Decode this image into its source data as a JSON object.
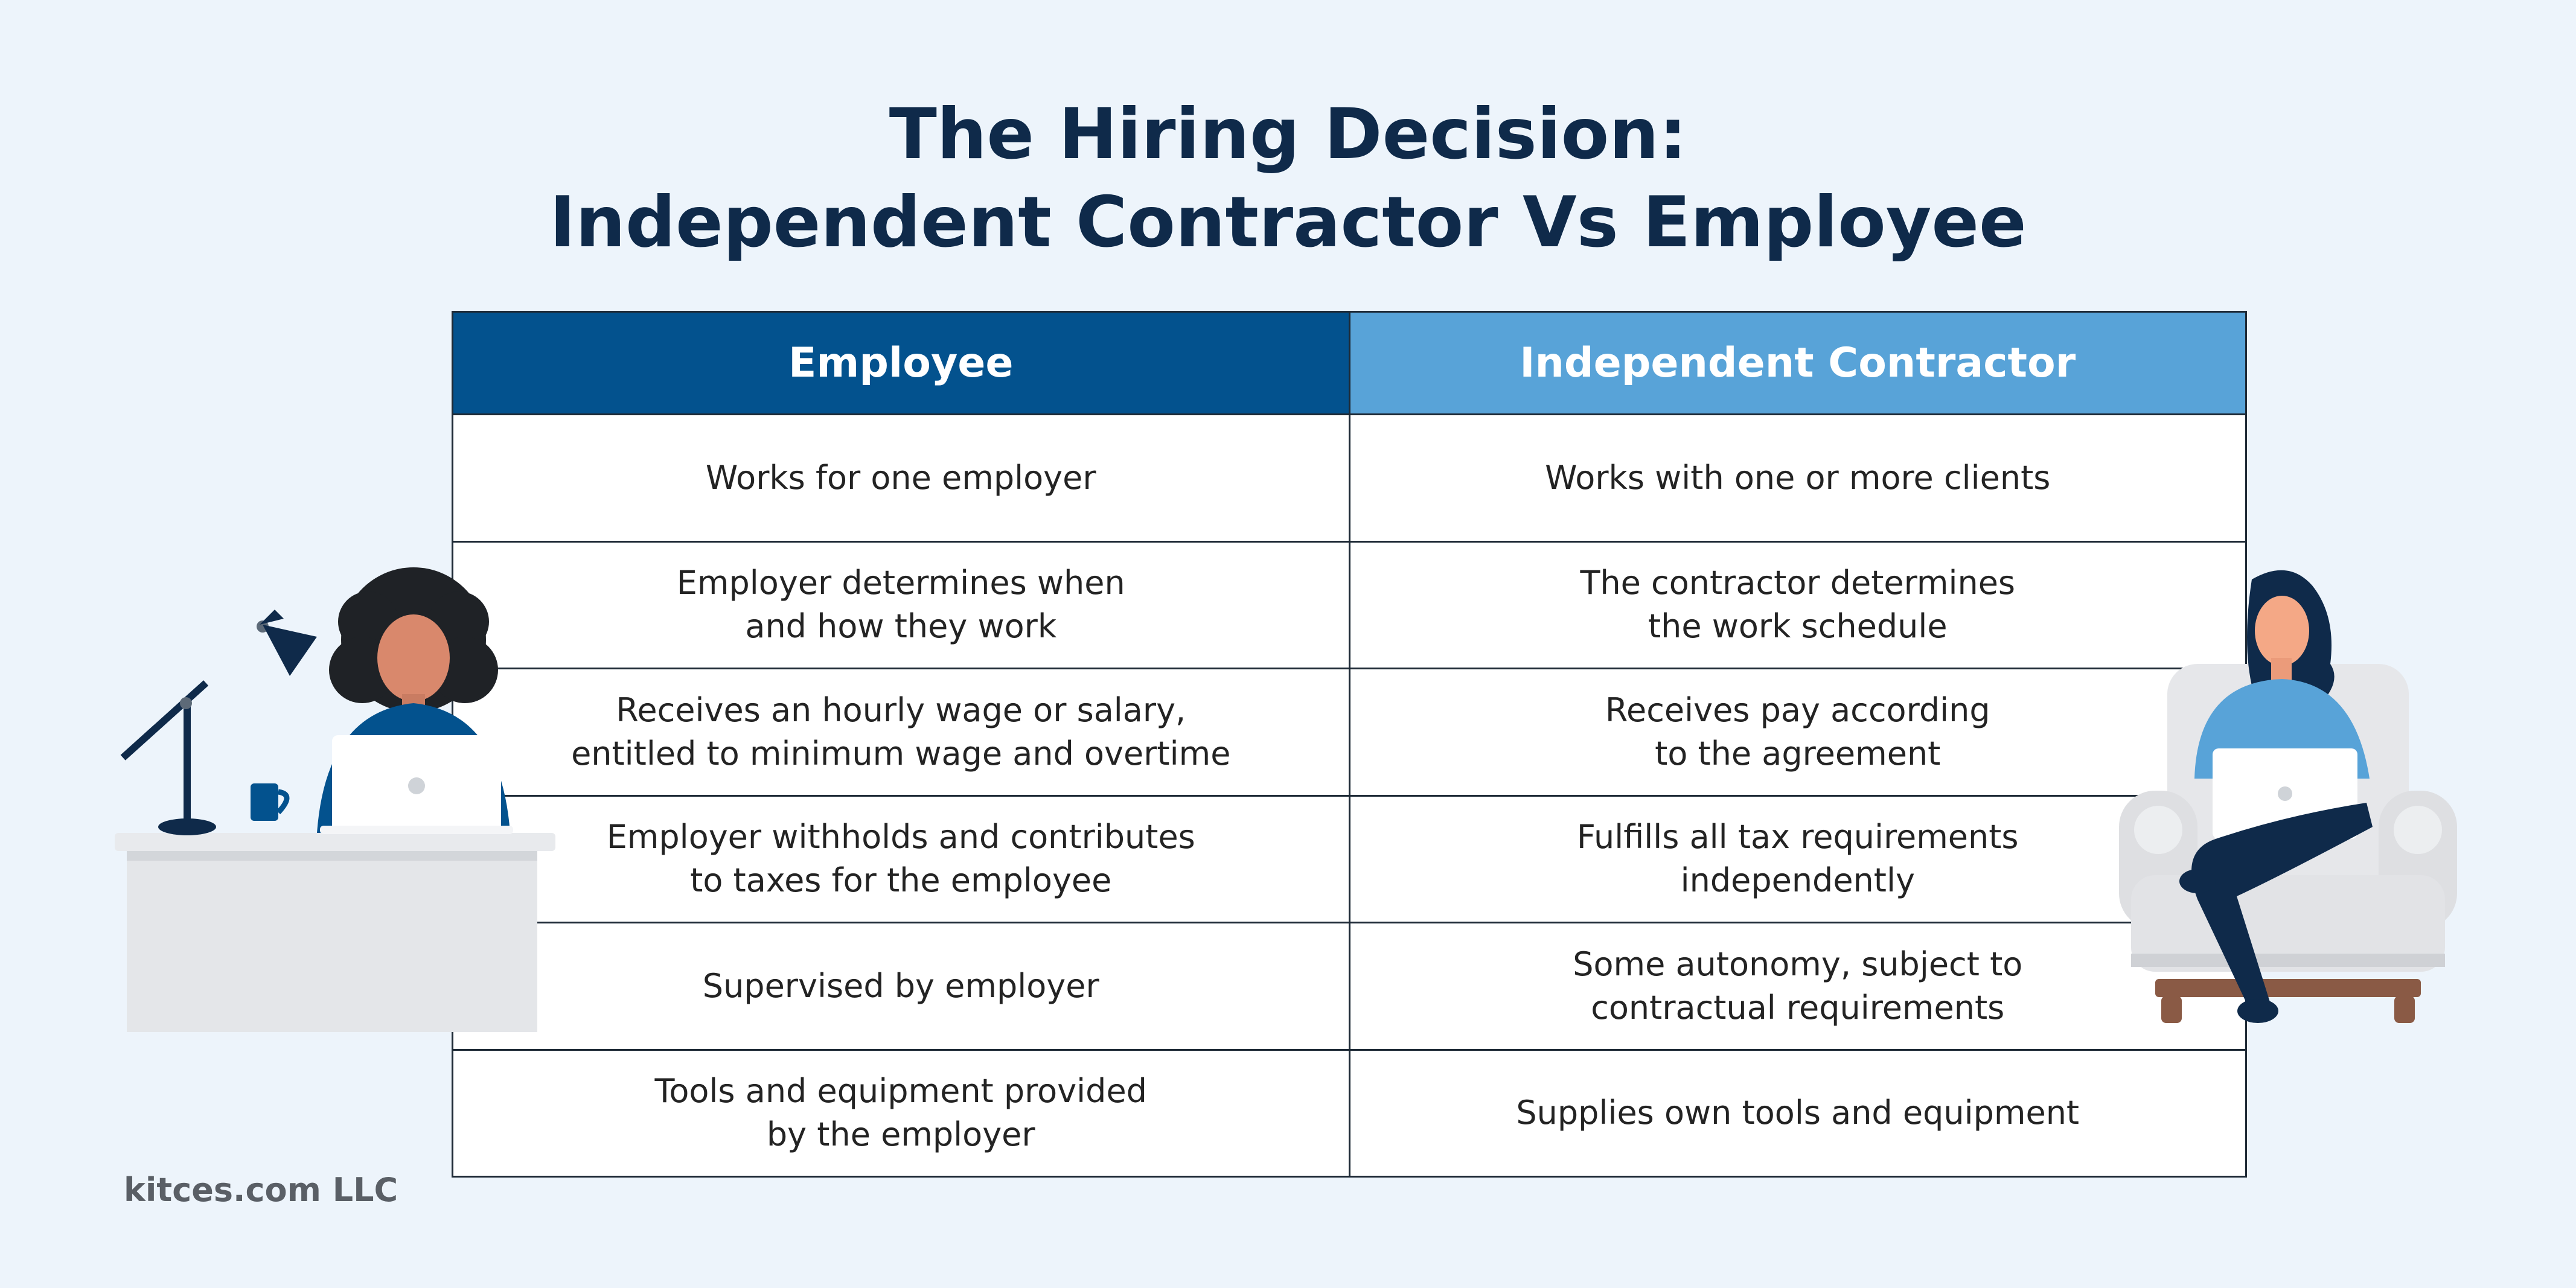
{
  "title": {
    "line1": "The Hiring Decision:",
    "line2": "Independent Contractor Vs Employee"
  },
  "table": {
    "headers": {
      "employee": "Employee",
      "contractor": "Independent Contractor"
    },
    "rows": [
      {
        "employee": "Works for one employer",
        "contractor": "Works with one or more clients"
      },
      {
        "employee": "Employer determines when\nand how they work",
        "contractor": "The contractor determines\nthe work schedule"
      },
      {
        "employee": "Receives an hourly wage or salary,\nentitled to minimum wage and overtime",
        "contractor": "Receives pay according\nto the agreement"
      },
      {
        "employee": "Employer withholds and contributes\nto taxes for the employee",
        "contractor": "Fulfills all tax requirements\nindependently"
      },
      {
        "employee": "Supervised by employer",
        "contractor": "Some autonomy, subject to\ncontractual requirements"
      },
      {
        "employee": "Tools and equipment provided\nby the employer",
        "contractor": "Supplies own tools and equipment"
      }
    ]
  },
  "credit": "kitces.com LLC",
  "colors": {
    "background": "#edf4fb",
    "employee_header": "#03528e",
    "contractor_header": "#58a3d8",
    "title": "#0f2a4a"
  }
}
